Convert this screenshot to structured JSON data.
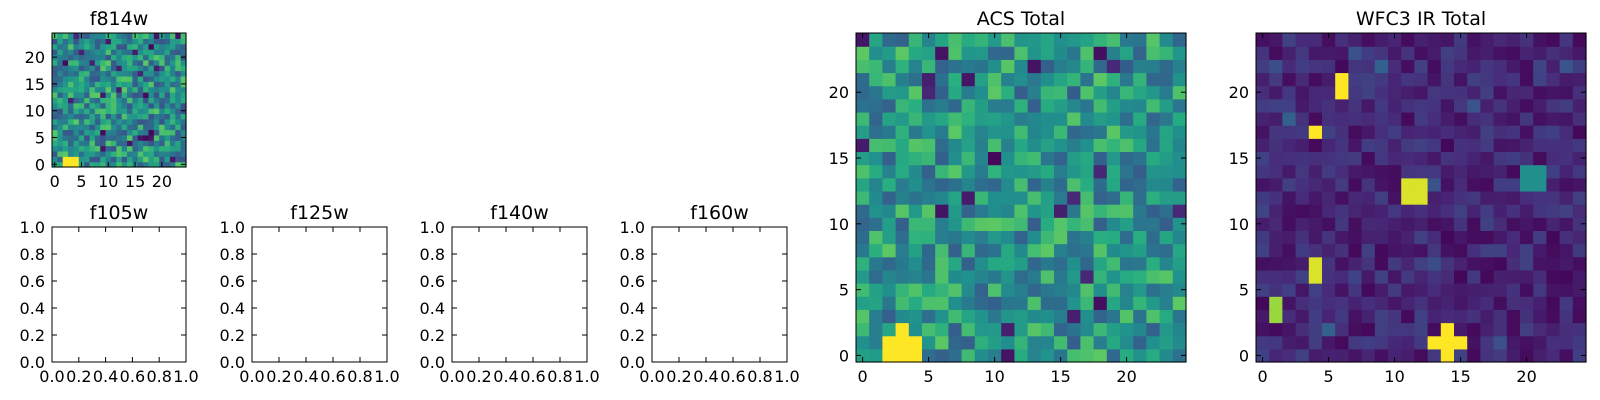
{
  "figure": {
    "background": "#ffffff",
    "colormap": "viridis"
  },
  "chart_data": [
    {
      "type": "heatmap",
      "title": "f814w",
      "xlabel": "",
      "ylabel": "",
      "xlim": [
        -0.5,
        24.5
      ],
      "ylim": [
        -0.5,
        24.5
      ],
      "xticks": [
        0,
        5,
        10,
        15,
        20
      ],
      "yticks": [
        0,
        5,
        10,
        15,
        20
      ],
      "grid_size": [
        25,
        25
      ],
      "bright_blobs": [
        {
          "x": [
            2,
            4
          ],
          "y": [
            0,
            1
          ],
          "value": 1.0
        }
      ],
      "background_range": [
        0.25,
        0.75
      ]
    },
    {
      "type": "empty",
      "title": "f105w",
      "xlim": [
        0,
        1
      ],
      "ylim": [
        0,
        1
      ],
      "xticks": [
        "0.0",
        "0.2",
        "0.4",
        "0.6",
        "0.8",
        "1.0"
      ],
      "yticks": [
        "0.0",
        "0.2",
        "0.4",
        "0.6",
        "0.8",
        "1.0"
      ]
    },
    {
      "type": "empty",
      "title": "f125w",
      "xlim": [
        0,
        1
      ],
      "ylim": [
        0,
        1
      ],
      "xticks": [
        "0.0",
        "0.2",
        "0.4",
        "0.6",
        "0.8",
        "1.0"
      ],
      "yticks": [
        "0.0",
        "0.2",
        "0.4",
        "0.6",
        "0.8",
        "1.0"
      ]
    },
    {
      "type": "empty",
      "title": "f140w",
      "xlim": [
        0,
        1
      ],
      "ylim": [
        0,
        1
      ],
      "xticks": [
        "0.0",
        "0.2",
        "0.4",
        "0.6",
        "0.8",
        "1.0"
      ],
      "yticks": [
        "0.0",
        "0.2",
        "0.4",
        "0.6",
        "0.8",
        "1.0"
      ]
    },
    {
      "type": "empty",
      "title": "f160w",
      "xlim": [
        0,
        1
      ],
      "ylim": [
        0,
        1
      ],
      "xticks": [
        "0.0",
        "0.2",
        "0.4",
        "0.6",
        "0.8",
        "1.0"
      ],
      "yticks": [
        "0.0",
        "0.2",
        "0.4",
        "0.6",
        "0.8",
        "1.0"
      ]
    },
    {
      "type": "heatmap",
      "title": "ACS Total",
      "xlim": [
        -0.5,
        24.5
      ],
      "ylim": [
        -0.5,
        24.5
      ],
      "xticks": [
        0,
        5,
        10,
        15,
        20
      ],
      "yticks": [
        0,
        5,
        10,
        15,
        20
      ],
      "grid_size": [
        25,
        25
      ],
      "bright_blobs": [
        {
          "x": [
            2,
            4
          ],
          "y": [
            0,
            1
          ],
          "value": 1.0
        },
        {
          "x": [
            3,
            3
          ],
          "y": [
            2,
            2
          ],
          "value": 1.0
        }
      ],
      "background_range": [
        0.3,
        0.75
      ]
    },
    {
      "type": "heatmap",
      "title": "WFC3 IR Total",
      "xlim": [
        -0.5,
        24.5
      ],
      "ylim": [
        -0.5,
        24.5
      ],
      "xticks": [
        0,
        5,
        10,
        15,
        20
      ],
      "yticks": [
        0,
        5,
        10,
        15,
        20
      ],
      "grid_size": [
        25,
        25
      ],
      "bright_blobs": [
        {
          "x": [
            6,
            6
          ],
          "y": [
            20,
            21
          ],
          "value": 1.0
        },
        {
          "x": [
            4,
            4
          ],
          "y": [
            17,
            17
          ],
          "value": 1.0
        },
        {
          "x": [
            11,
            12
          ],
          "y": [
            12,
            13
          ],
          "value": 0.95
        },
        {
          "x": [
            4,
            4
          ],
          "y": [
            6,
            7
          ],
          "value": 0.95
        },
        {
          "x": [
            1,
            1
          ],
          "y": [
            3,
            4
          ],
          "value": 0.85
        },
        {
          "x": [
            13,
            15
          ],
          "y": [
            1,
            1
          ],
          "value": 1.0
        },
        {
          "x": [
            14,
            14
          ],
          "y": [
            0,
            2
          ],
          "value": 1.0
        },
        {
          "x": [
            20,
            21
          ],
          "y": [
            13,
            14
          ],
          "value": 0.5
        }
      ],
      "background_range": [
        0.02,
        0.2
      ]
    }
  ]
}
